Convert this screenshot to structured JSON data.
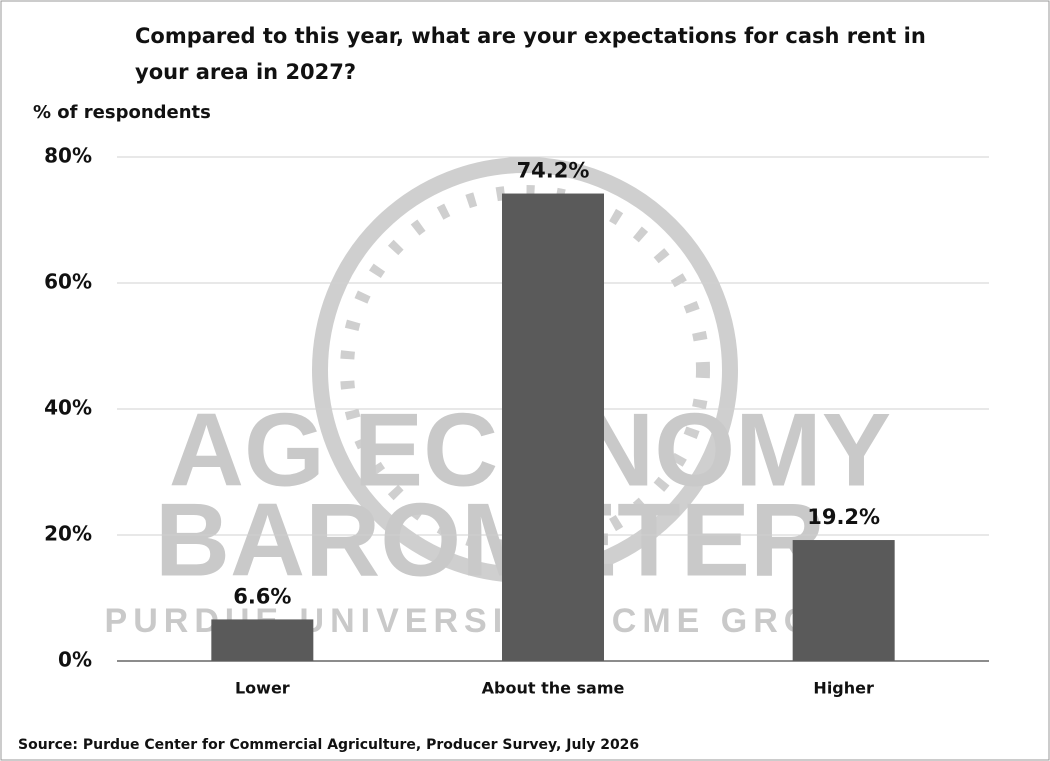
{
  "chart_data": {
    "type": "bar",
    "title": "Compared to this year, what are your expectations for cash rent in your area in 2027?",
    "y_axis_label": "% of respondents",
    "categories": [
      "Lower",
      "About the same",
      "Higher"
    ],
    "values": [
      6.6,
      74.2,
      19.2
    ],
    "value_labels": [
      "6.6%",
      "74.2%",
      "19.2%"
    ],
    "color": "#5a5a5a",
    "ylim": [
      0,
      80
    ],
    "yticks": [
      {
        "value": 0,
        "label": "0%"
      },
      {
        "value": 20,
        "label": "20%"
      },
      {
        "value": 40,
        "label": "40%"
      },
      {
        "value": 60,
        "label": "60%"
      },
      {
        "value": 80,
        "label": "80%"
      }
    ],
    "grid": true,
    "source": "Source: Purdue Center for Commercial Agriculture, Producer Survey, July 2026",
    "watermark": [
      "AG ECONOMY",
      "BAROMETER",
      "PURDUE UNIVERSITY • CME GROUP"
    ]
  }
}
